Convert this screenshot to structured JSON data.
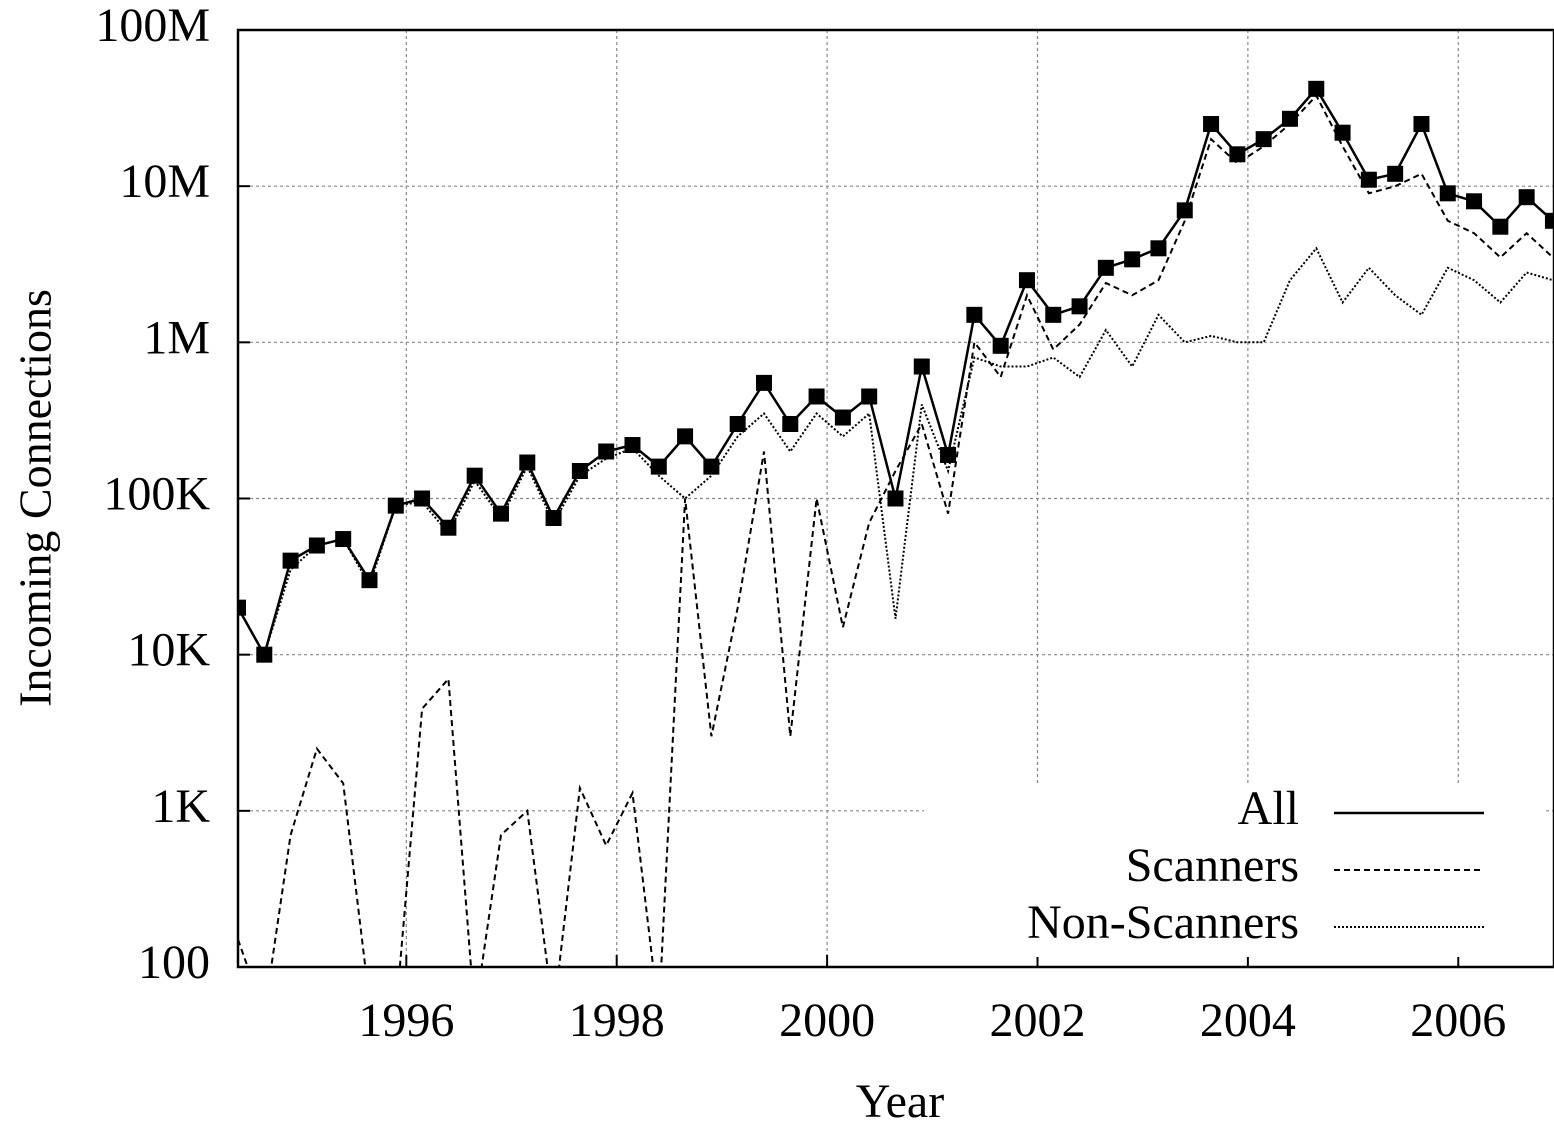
{
  "chart_data": {
    "type": "line",
    "xlabel": "Year",
    "ylabel": "Incoming Connections",
    "ylog": true,
    "grid": true,
    "legend": "bottom-right",
    "xlim": [
      1994.4,
      2006.91
    ],
    "xticks": [
      1996,
      1998,
      2000,
      2002,
      2004,
      2006
    ],
    "ylim": [
      100,
      100000000
    ],
    "yticks": [
      100,
      {
        "value": 1000,
        "label": "1K"
      },
      {
        "value": 10000,
        "label": "10K"
      },
      {
        "value": 100000,
        "label": "100K"
      },
      {
        "value": 1000000,
        "label": "1M"
      },
      {
        "value": 10000000,
        "label": "10M"
      },
      {
        "value": 100000000,
        "label": "100M"
      }
    ],
    "x": [
      1994.4,
      1994.65,
      1994.9,
      1995.15,
      1995.4,
      1995.65,
      1995.9,
      1996.15,
      1996.4,
      1996.65,
      1996.9,
      1997.15,
      1997.4,
      1997.65,
      1997.9,
      1998.15,
      1998.4,
      1998.65,
      1998.9,
      1999.15,
      1999.4,
      1999.65,
      1999.9,
      2000.15,
      2000.4,
      2000.65,
      2000.9,
      2001.15,
      2001.4,
      2001.65,
      2001.9,
      2002.15,
      2002.4,
      2002.65,
      2002.9,
      2003.15,
      2003.4,
      2003.65,
      2003.9,
      2004.15,
      2004.4,
      2004.65,
      2004.9,
      2005.15,
      2005.4,
      2005.65,
      2005.9,
      2006.15,
      2006.4,
      2006.65,
      2006.9
    ],
    "series": [
      {
        "name": "All",
        "color": "#000000",
        "dash": "solid",
        "marker": "square",
        "values": [
          20000,
          10000,
          40000,
          50000,
          55000,
          30000,
          90000,
          100000,
          65000,
          140000,
          80000,
          170000,
          75000,
          150000,
          200000,
          220000,
          160000,
          250000,
          160000,
          300000,
          550000,
          300000,
          450000,
          330000,
          450000,
          100000,
          700000,
          190000,
          1500000,
          950000,
          2500000,
          1500000,
          1700000,
          3000000,
          3400000,
          4000000,
          7000000,
          25000000,
          16000000,
          20000000,
          27000000,
          42000000,
          22000000,
          11000000,
          12000000,
          25000000,
          9000000,
          8000000,
          5500000,
          8500000,
          6000000
        ]
      },
      {
        "name": "Scanners",
        "color": "#000000",
        "dash": "dashed",
        "values": [
          150,
          50,
          700,
          2500,
          1500,
          60,
          50,
          4500,
          7000,
          50,
          700,
          1000,
          50,
          1400,
          600,
          1300,
          50,
          100000,
          3000,
          20000,
          200000,
          3000,
          100000,
          15000,
          70000,
          150000,
          300000,
          80000,
          1000000,
          600000,
          2000000,
          900000,
          1300000,
          2400000,
          2000000,
          2500000,
          6000000,
          20000000,
          14000000,
          18000000,
          25000000,
          38000000,
          18000000,
          9000000,
          10000000,
          12000000,
          6000000,
          5000000,
          3500000,
          5000000,
          3500000
        ]
      },
      {
        "name": "Non-Scanners",
        "color": "#000000",
        "dash": "dotted",
        "values": [
          20000,
          10000,
          35000,
          50000,
          55000,
          28000,
          90000,
          95000,
          60000,
          130000,
          75000,
          160000,
          70000,
          140000,
          180000,
          210000,
          140000,
          100000,
          140000,
          250000,
          350000,
          200000,
          350000,
          250000,
          350000,
          17000,
          400000,
          150000,
          800000,
          700000,
          700000,
          800000,
          600000,
          1200000,
          700000,
          1500000,
          1000000,
          1100000,
          1000000,
          1000000,
          2500000,
          4000000,
          1800000,
          3000000,
          2000000,
          1500000,
          3000000,
          2500000,
          1800000,
          2800000,
          2500000
        ]
      }
    ]
  }
}
